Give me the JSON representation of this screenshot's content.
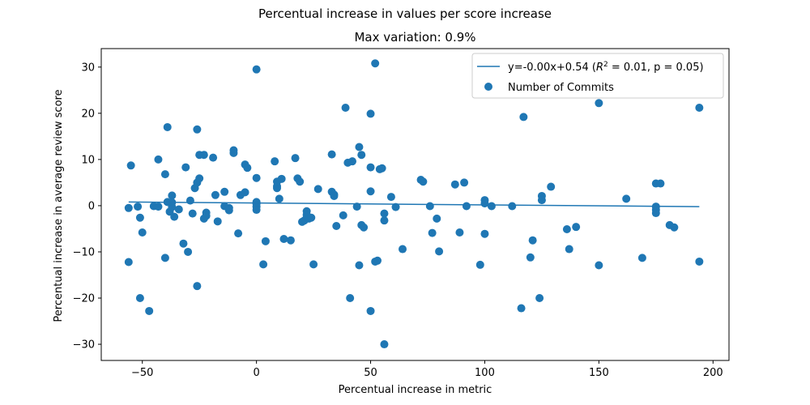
{
  "chart_data": {
    "type": "scatter",
    "suptitle": "Percentual increase in values per score increase",
    "title": "Max variation: 0.9%",
    "xlabel": "Percentual increase in metric",
    "ylabel": "Percentual increase in average review score",
    "xlim": [
      -68,
      207
    ],
    "ylim": [
      -33.5,
      34
    ],
    "xticks": [
      -50,
      0,
      50,
      100,
      150,
      200
    ],
    "yticks": [
      -30,
      -20,
      -10,
      0,
      10,
      20,
      30
    ],
    "grid": false,
    "legend_placement": "top-right",
    "colors": {
      "series": "#1f77b4"
    },
    "fit_line": {
      "label_pre": "y=-0.00x+0.54 (",
      "label_r2_base": "R",
      "label_r2_sup": "2",
      "label_post": " = 0.01, p = 0.05)",
      "x": [
        -56,
        194
      ],
      "y": [
        0.8,
        -0.2
      ]
    },
    "series": [
      {
        "name": "Number of Commits",
        "points": [
          [
            -56,
            -0.5
          ],
          [
            -56,
            -12.2
          ],
          [
            -55,
            8.7
          ],
          [
            -52,
            -0.2
          ],
          [
            -51,
            -2.6
          ],
          [
            -51,
            -20.0
          ],
          [
            -50,
            -5.8
          ],
          [
            -47,
            -22.8
          ],
          [
            -45,
            -0.1
          ],
          [
            -43,
            10.0
          ],
          [
            -43,
            -0.2
          ],
          [
            -40,
            -11.3
          ],
          [
            -40,
            6.8
          ],
          [
            -39,
            17.0
          ],
          [
            -39,
            0.8
          ],
          [
            -38,
            -1.3
          ],
          [
            -37,
            2.2
          ],
          [
            -37,
            0.7
          ],
          [
            -37,
            -0.3
          ],
          [
            -36,
            -2.4
          ],
          [
            -34,
            -0.8
          ],
          [
            -32,
            -8.2
          ],
          [
            -31,
            8.3
          ],
          [
            -30,
            -10.0
          ],
          [
            -29,
            1.1
          ],
          [
            -28,
            -1.7
          ],
          [
            -27,
            3.8
          ],
          [
            -26,
            16.5
          ],
          [
            -26,
            5.0
          ],
          [
            -26,
            -17.4
          ],
          [
            -25,
            11.0
          ],
          [
            -25,
            5.9
          ],
          [
            -23,
            11.0
          ],
          [
            -23,
            -2.8
          ],
          [
            -22,
            -1.5
          ],
          [
            -22,
            -2.2
          ],
          [
            -19,
            10.4
          ],
          [
            -18,
            2.3
          ],
          [
            -17,
            -3.4
          ],
          [
            -14,
            3.0
          ],
          [
            -14,
            -0.1
          ],
          [
            -12,
            -0.5
          ],
          [
            -12,
            -1.0
          ],
          [
            -10,
            12.0
          ],
          [
            -10,
            11.4
          ],
          [
            -8,
            -6.0
          ],
          [
            -7,
            2.3
          ],
          [
            -5,
            2.9
          ],
          [
            -5,
            8.9
          ],
          [
            -4,
            8.2
          ],
          [
            0,
            29.5
          ],
          [
            0,
            0.8
          ],
          [
            0,
            0.4
          ],
          [
            0,
            -0.2
          ],
          [
            0,
            -0.9
          ],
          [
            0,
            6.0
          ],
          [
            3,
            -12.7
          ],
          [
            4,
            -7.7
          ],
          [
            8,
            9.6
          ],
          [
            9,
            3.8
          ],
          [
            9,
            4.2
          ],
          [
            9,
            5.2
          ],
          [
            10,
            1.5
          ],
          [
            11,
            5.8
          ],
          [
            12,
            -7.2
          ],
          [
            15,
            -7.5
          ],
          [
            17,
            10.3
          ],
          [
            18,
            5.9
          ],
          [
            19,
            5.2
          ],
          [
            20,
            -3.5
          ],
          [
            21,
            -3.2
          ],
          [
            22,
            -1.2
          ],
          [
            22,
            -2.0
          ],
          [
            23,
            -2.8
          ],
          [
            24,
            -2.6
          ],
          [
            25,
            -12.7
          ],
          [
            27,
            3.6
          ],
          [
            33,
            11.1
          ],
          [
            33,
            3.0
          ],
          [
            34,
            2.4
          ],
          [
            34,
            2.1
          ],
          [
            35,
            -4.4
          ],
          [
            38,
            -2.1
          ],
          [
            39,
            21.2
          ],
          [
            40,
            9.3
          ],
          [
            41,
            -20.0
          ],
          [
            42,
            9.6
          ],
          [
            44,
            -0.2
          ],
          [
            45,
            12.7
          ],
          [
            45,
            -12.9
          ],
          [
            46,
            11.0
          ],
          [
            46,
            -4.2
          ],
          [
            47,
            -4.7
          ],
          [
            50,
            -22.8
          ],
          [
            50,
            19.9
          ],
          [
            50,
            8.3
          ],
          [
            50,
            3.1
          ],
          [
            52,
            -12.1
          ],
          [
            52,
            30.8
          ],
          [
            53,
            -11.9
          ],
          [
            54,
            7.9
          ],
          [
            55,
            8.1
          ],
          [
            56,
            -30.0
          ],
          [
            56,
            -3.2
          ],
          [
            56,
            -1.7
          ],
          [
            59,
            1.9
          ],
          [
            61,
            -0.3
          ],
          [
            64,
            -9.4
          ],
          [
            72,
            5.6
          ],
          [
            73,
            5.2
          ],
          [
            76,
            -0.1
          ],
          [
            77,
            -5.9
          ],
          [
            79,
            -2.8
          ],
          [
            80,
            -9.9
          ],
          [
            87,
            4.6
          ],
          [
            89,
            -5.8
          ],
          [
            91,
            5.0
          ],
          [
            92,
            -0.1
          ],
          [
            98,
            -12.8
          ],
          [
            100,
            1.2
          ],
          [
            100,
            0.5
          ],
          [
            100,
            -6.1
          ],
          [
            103,
            -0.1
          ],
          [
            112,
            -0.1
          ],
          [
            116,
            -22.2
          ],
          [
            117,
            19.2
          ],
          [
            120,
            -11.2
          ],
          [
            121,
            -7.5
          ],
          [
            124,
            -20.0
          ],
          [
            125,
            2.1
          ],
          [
            125,
            1.2
          ],
          [
            129,
            4.1
          ],
          [
            136,
            -5.1
          ],
          [
            137,
            -9.4
          ],
          [
            140,
            -4.6
          ],
          [
            150,
            22.2
          ],
          [
            150,
            -12.9
          ],
          [
            162,
            1.5
          ],
          [
            169,
            -11.3
          ],
          [
            175,
            4.8
          ],
          [
            175,
            -0.2
          ],
          [
            175,
            -0.9
          ],
          [
            175,
            -1.6
          ],
          [
            177,
            4.8
          ],
          [
            181,
            -4.2
          ],
          [
            183,
            -4.7
          ],
          [
            194,
            -12.1
          ],
          [
            194,
            21.2
          ]
        ]
      }
    ]
  }
}
